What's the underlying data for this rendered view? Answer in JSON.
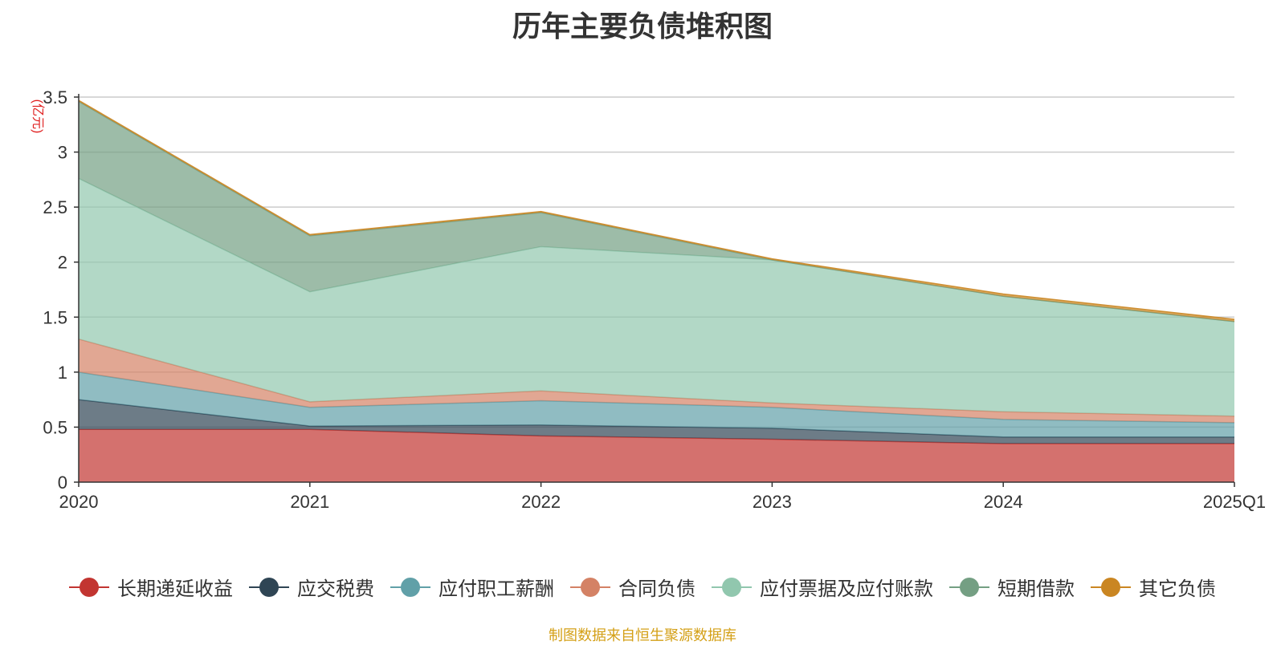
{
  "chart_data": {
    "type": "area",
    "stacked": true,
    "title": "历年主要负债堆积图",
    "ylabel": "(亿元)",
    "xlabel": "",
    "categories": [
      "2020",
      "2021",
      "2022",
      "2023",
      "2024",
      "2025Q1"
    ],
    "ylim": [
      0,
      3.5
    ],
    "yticks": [
      "0",
      "0.5",
      "1",
      "1.5",
      "2",
      "2.5",
      "3",
      "3.5"
    ],
    "grid": true,
    "legend_position": "bottom",
    "series": [
      {
        "name": "长期递延收益",
        "color": "#c23531",
        "values": [
          0.48,
          0.48,
          0.42,
          0.39,
          0.35,
          0.35
        ]
      },
      {
        "name": "应交税费",
        "color": "#2f4554",
        "values": [
          0.27,
          0.03,
          0.1,
          0.1,
          0.06,
          0.06
        ]
      },
      {
        "name": "应付职工薪酬",
        "color": "#61a0a8",
        "values": [
          0.25,
          0.17,
          0.22,
          0.19,
          0.16,
          0.13
        ]
      },
      {
        "name": "合同负债",
        "color": "#d48265",
        "values": [
          0.3,
          0.05,
          0.09,
          0.04,
          0.07,
          0.06
        ]
      },
      {
        "name": "应付票据及应付账款",
        "color": "#91c7ae",
        "values": [
          1.46,
          1.0,
          1.31,
          1.3,
          1.05,
          0.86
        ]
      },
      {
        "name": "短期借款",
        "color": "#749f83",
        "values": [
          0.7,
          0.51,
          0.31,
          0.0,
          0.0,
          0.0
        ]
      },
      {
        "name": "其它负债",
        "color": "#ca8622",
        "values": [
          0.01,
          0.01,
          0.01,
          0.01,
          0.02,
          0.02
        ]
      }
    ]
  },
  "footer": {
    "source": "制图数据来自恒生聚源数据库"
  }
}
